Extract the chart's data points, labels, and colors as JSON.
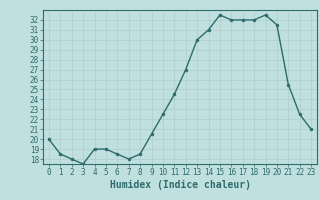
{
  "x": [
    0,
    1,
    2,
    3,
    4,
    5,
    6,
    7,
    8,
    9,
    10,
    11,
    12,
    13,
    14,
    15,
    16,
    17,
    18,
    19,
    20,
    21,
    22,
    23
  ],
  "y": [
    20,
    18.5,
    18,
    17.5,
    19,
    19,
    18.5,
    18,
    18.5,
    20.5,
    22.5,
    24.5,
    27,
    30,
    31,
    32.5,
    32,
    32,
    32,
    32.5,
    31.5,
    25.5,
    22.5,
    21
  ],
  "line_color": "#2e6b6b",
  "marker": "o",
  "marker_size": 2,
  "bg_color": "#c0e0e0",
  "grid_major_color": "#adc8c8",
  "grid_minor_color": "#c8dcdc",
  "xlabel": "Humidex (Indice chaleur)",
  "ylabel": "",
  "xlim": [
    -0.5,
    23.5
  ],
  "ylim": [
    17.5,
    33
  ],
  "yticks": [
    18,
    19,
    20,
    21,
    22,
    23,
    24,
    25,
    26,
    27,
    28,
    29,
    30,
    31,
    32
  ],
  "xticks": [
    0,
    1,
    2,
    3,
    4,
    5,
    6,
    7,
    8,
    9,
    10,
    11,
    12,
    13,
    14,
    15,
    16,
    17,
    18,
    19,
    20,
    21,
    22,
    23
  ],
  "tick_color": "#2e6b6b",
  "label_color": "#2e6b6b",
  "xlabel_fontsize": 7,
  "tick_fontsize": 5.5,
  "line_width": 1.0
}
